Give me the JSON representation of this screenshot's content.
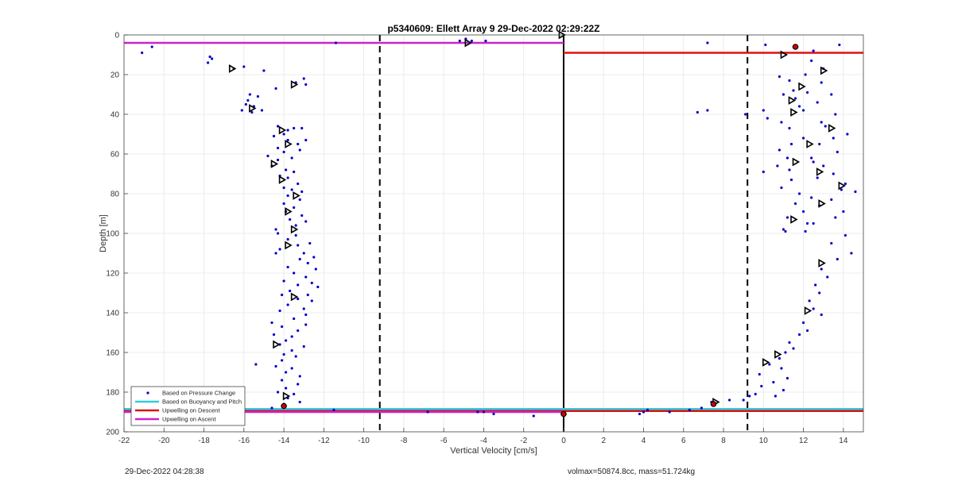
{
  "chart_data": {
    "type": "scatter",
    "title": "p5340609: Ellett Array 9 29-Dec-2022 02:29:22Z",
    "xlabel": "Vertical Velocity [cm/s]",
    "ylabel": "Depth [m]",
    "xlim": [
      -22,
      15
    ],
    "ylim": [
      0,
      200
    ],
    "y_reversed": true,
    "xticks": [
      -22,
      -20,
      -18,
      -16,
      -14,
      -12,
      -10,
      -8,
      -6,
      -4,
      -2,
      0,
      2,
      4,
      6,
      8,
      10,
      12,
      14
    ],
    "yticks": [
      0,
      20,
      40,
      60,
      80,
      100,
      120,
      140,
      160,
      180,
      200
    ],
    "grid": true,
    "legend_position": "bottom-left",
    "series": [
      {
        "name": "Based on Pressure Change",
        "style": "dots",
        "color": "#0000cc",
        "points": [
          [
            -21.1,
            9
          ],
          [
            -20.6,
            6
          ],
          [
            -17.6,
            12
          ],
          [
            -17.7,
            11
          ],
          [
            -17.8,
            14
          ],
          [
            -16.5,
            17
          ],
          [
            -16.0,
            16
          ],
          [
            -15.0,
            18
          ],
          [
            -13.0,
            22
          ],
          [
            -12.9,
            25
          ],
          [
            -13.4,
            24
          ],
          [
            -14.4,
            27
          ],
          [
            -15.7,
            30
          ],
          [
            -15.3,
            31
          ],
          [
            -15.8,
            33
          ],
          [
            -15.9,
            35
          ],
          [
            -15.5,
            36
          ],
          [
            -16.1,
            38
          ],
          [
            -15.1,
            38
          ],
          [
            -15.6,
            39
          ],
          [
            -14.3,
            46
          ],
          [
            -13.8,
            48
          ],
          [
            -13.5,
            47
          ],
          [
            -13.1,
            47
          ],
          [
            -14.0,
            50
          ],
          [
            -14.5,
            51
          ],
          [
            -13.8,
            53
          ],
          [
            -12.9,
            53
          ],
          [
            -13.3,
            55
          ],
          [
            -14.3,
            57
          ],
          [
            -13.2,
            58
          ],
          [
            -14.0,
            59
          ],
          [
            -14.8,
            61
          ],
          [
            -13.6,
            62
          ],
          [
            -14.3,
            63
          ],
          [
            -14.6,
            66
          ],
          [
            -13.9,
            68
          ],
          [
            -13.5,
            69
          ],
          [
            -14.2,
            71
          ],
          [
            -13.8,
            72
          ],
          [
            -13.3,
            75
          ],
          [
            -14.0,
            77
          ],
          [
            -13.6,
            78
          ],
          [
            -13.1,
            79
          ],
          [
            -13.8,
            81
          ],
          [
            -13.2,
            83
          ],
          [
            -14.0,
            85
          ],
          [
            -13.5,
            87
          ],
          [
            -13.9,
            89
          ],
          [
            -13.1,
            91
          ],
          [
            -13.7,
            93
          ],
          [
            -12.9,
            94
          ],
          [
            -13.4,
            96
          ],
          [
            -14.4,
            98
          ],
          [
            -14.3,
            100
          ],
          [
            -13.4,
            101
          ],
          [
            -13.8,
            103
          ],
          [
            -12.7,
            105
          ],
          [
            -13.3,
            106
          ],
          [
            -14.2,
            108
          ],
          [
            -14.4,
            110
          ],
          [
            -13.0,
            110
          ],
          [
            -12.5,
            112
          ],
          [
            -13.2,
            113
          ],
          [
            -12.8,
            115
          ],
          [
            -13.8,
            117
          ],
          [
            -12.4,
            118
          ],
          [
            -13.5,
            120
          ],
          [
            -12.9,
            122
          ],
          [
            -14.0,
            124
          ],
          [
            -12.6,
            125
          ],
          [
            -13.3,
            126
          ],
          [
            -12.3,
            127
          ],
          [
            -13.7,
            129
          ],
          [
            -14.1,
            131
          ],
          [
            -12.8,
            131
          ],
          [
            -13.3,
            133
          ],
          [
            -12.6,
            134
          ],
          [
            -13.8,
            136
          ],
          [
            -13.0,
            138
          ],
          [
            -14.2,
            139
          ],
          [
            -12.9,
            141
          ],
          [
            -13.5,
            143
          ],
          [
            -14.6,
            145
          ],
          [
            -12.9,
            146
          ],
          [
            -14.1,
            147
          ],
          [
            -13.3,
            149
          ],
          [
            -14.5,
            151
          ],
          [
            -13.6,
            152
          ],
          [
            -13.9,
            154
          ],
          [
            -14.2,
            156
          ],
          [
            -13.0,
            157
          ],
          [
            -13.6,
            159
          ],
          [
            -14.0,
            161
          ],
          [
            -13.4,
            162
          ],
          [
            -14.1,
            164
          ],
          [
            -15.4,
            166
          ],
          [
            -14.4,
            167
          ],
          [
            -13.6,
            168
          ],
          [
            -13.9,
            170
          ],
          [
            -13.2,
            172
          ],
          [
            -14.1,
            174
          ],
          [
            -13.3,
            176
          ],
          [
            -13.9,
            178
          ],
          [
            -14.3,
            180
          ],
          [
            -13.5,
            181
          ],
          [
            -13.8,
            183
          ],
          [
            -13.2,
            185
          ],
          [
            -14.0,
            186
          ],
          [
            -14.6,
            188
          ],
          [
            -11.5,
            189
          ],
          [
            -11.4,
            4
          ],
          [
            -5.2,
            3
          ],
          [
            -4.9,
            2
          ],
          [
            -4.6,
            3
          ],
          [
            -3.9,
            3
          ],
          [
            -6.8,
            190
          ],
          [
            -4.3,
            190
          ],
          [
            -4.0,
            190
          ],
          [
            -3.5,
            191
          ],
          [
            -1.5,
            192
          ],
          [
            3.8,
            191
          ],
          [
            4.0,
            190
          ],
          [
            4.2,
            189
          ],
          [
            5.3,
            190
          ],
          [
            6.3,
            189
          ],
          [
            6.9,
            188
          ],
          [
            7.2,
            4
          ],
          [
            7.4,
            185
          ],
          [
            8.3,
            184
          ],
          [
            9.0,
            184
          ],
          [
            9.3,
            182
          ],
          [
            6.7,
            39
          ],
          [
            7.2,
            38
          ],
          [
            9.1,
            40
          ],
          [
            10.1,
            5
          ],
          [
            10.0,
            38
          ],
          [
            10.2,
            42
          ],
          [
            10.8,
            21
          ],
          [
            11.3,
            23
          ],
          [
            11.5,
            28
          ],
          [
            11.0,
            30
          ],
          [
            11.6,
            32
          ],
          [
            11.8,
            36
          ],
          [
            10.9,
            44
          ],
          [
            11.3,
            47
          ],
          [
            12.0,
            52
          ],
          [
            11.4,
            55
          ],
          [
            10.8,
            58
          ],
          [
            11.2,
            62
          ],
          [
            12.5,
            64
          ],
          [
            10.7,
            66
          ],
          [
            11.3,
            68
          ],
          [
            10.0,
            69
          ],
          [
            11.4,
            73
          ],
          [
            10.9,
            77
          ],
          [
            11.8,
            80
          ],
          [
            12.4,
            82
          ],
          [
            11.6,
            85
          ],
          [
            12.0,
            89
          ],
          [
            11.2,
            92
          ],
          [
            11.0,
            98
          ],
          [
            11.1,
            99
          ],
          [
            12.5,
            95
          ],
          [
            13.8,
            5
          ],
          [
            12.5,
            8
          ],
          [
            12.4,
            13
          ],
          [
            13.0,
            17
          ],
          [
            12.1,
            20
          ],
          [
            12.9,
            24
          ],
          [
            12.2,
            29
          ],
          [
            13.4,
            30
          ],
          [
            12.7,
            34
          ],
          [
            12.0,
            38
          ],
          [
            13.6,
            40
          ],
          [
            12.9,
            44
          ],
          [
            13.1,
            46
          ],
          [
            14.2,
            50
          ],
          [
            13.5,
            52
          ],
          [
            12.8,
            55
          ],
          [
            13.7,
            59
          ],
          [
            12.4,
            62
          ],
          [
            13.0,
            66
          ],
          [
            13.5,
            70
          ],
          [
            12.7,
            72
          ],
          [
            14.1,
            75
          ],
          [
            13.9,
            78
          ],
          [
            14.6,
            79
          ],
          [
            13.4,
            83
          ],
          [
            12.8,
            86
          ],
          [
            14.0,
            89
          ],
          [
            13.6,
            92
          ],
          [
            12.2,
            95
          ],
          [
            12.1,
            99
          ],
          [
            14.1,
            101
          ],
          [
            13.4,
            105
          ],
          [
            14.4,
            110
          ],
          [
            13.7,
            113
          ],
          [
            12.9,
            118
          ],
          [
            13.2,
            122
          ],
          [
            12.6,
            126
          ],
          [
            12.8,
            130
          ],
          [
            12.3,
            134
          ],
          [
            12.5,
            138
          ],
          [
            12.9,
            141
          ],
          [
            12.0,
            145
          ],
          [
            12.2,
            149
          ],
          [
            11.8,
            151
          ],
          [
            11.3,
            155
          ],
          [
            11.5,
            158
          ],
          [
            11.1,
            160
          ],
          [
            10.8,
            163
          ],
          [
            10.3,
            166
          ],
          [
            10.9,
            168
          ],
          [
            9.8,
            171
          ],
          [
            11.2,
            173
          ],
          [
            10.5,
            175
          ],
          [
            9.9,
            177
          ],
          [
            11.0,
            179
          ],
          [
            9.6,
            181
          ],
          [
            10.6,
            182
          ]
        ]
      },
      {
        "name": "Based on Buoyancy and Pitch",
        "style": "line",
        "color": "#33ccdd",
        "segments": [
          [
            [
              -22,
              188.5
            ],
            [
              15,
              188.5
            ]
          ]
        ]
      },
      {
        "name": "Upwelling on Descent",
        "style": "line",
        "color": "#dd1111",
        "segments": [
          [
            [
              0,
              9
            ],
            [
              15,
              9
            ]
          ],
          [
            [
              -22,
              189.5
            ],
            [
              15,
              189.5
            ]
          ]
        ]
      },
      {
        "name": "Upwelling on Ascent",
        "style": "line",
        "color": "#cc22cc",
        "segments": [
          [
            [
              -22,
              4
            ],
            [
              0,
              4
            ]
          ],
          [
            [
              -22,
              190
            ],
            [
              0,
              190
            ]
          ]
        ]
      },
      {
        "style": "triangles",
        "color": "#000000",
        "points": [
          [
            -16.6,
            17
          ],
          [
            -15.6,
            37
          ],
          [
            -13.5,
            25
          ],
          [
            -14.1,
            48
          ],
          [
            -13.8,
            55
          ],
          [
            -14.5,
            65
          ],
          [
            -14.1,
            73
          ],
          [
            -13.4,
            81
          ],
          [
            -13.8,
            89
          ],
          [
            -13.5,
            98
          ],
          [
            -13.8,
            106
          ],
          [
            -13.5,
            132
          ],
          [
            -14.4,
            156
          ],
          [
            -13.9,
            182
          ],
          [
            -4.8,
            4
          ],
          [
            -0.1,
            0
          ],
          [
            11.0,
            10
          ],
          [
            11.9,
            26
          ],
          [
            13.0,
            18
          ],
          [
            11.4,
            33
          ],
          [
            11.5,
            39
          ],
          [
            13.4,
            47
          ],
          [
            12.3,
            55
          ],
          [
            11.6,
            64
          ],
          [
            12.8,
            69
          ],
          [
            13.9,
            76
          ],
          [
            12.9,
            85
          ],
          [
            11.5,
            93
          ],
          [
            12.2,
            139
          ],
          [
            12.9,
            115
          ],
          [
            10.7,
            161
          ],
          [
            10.1,
            165
          ],
          [
            7.6,
            185
          ]
        ]
      },
      {
        "style": "red-circles",
        "color": "#cc0000",
        "points": [
          [
            -14.0,
            187
          ],
          [
            0.0,
            191
          ],
          [
            7.5,
            186
          ],
          [
            11.6,
            6
          ]
        ]
      }
    ],
    "reference_lines": [
      {
        "orientation": "vertical",
        "x": 0,
        "style": "solid",
        "color": "#000000"
      },
      {
        "orientation": "vertical",
        "x": -9.2,
        "style": "dashed",
        "color": "#000000"
      },
      {
        "orientation": "vertical",
        "x": 9.2,
        "style": "dashed",
        "color": "#000000"
      }
    ]
  },
  "footer": {
    "timestamp": "29-Dec-2022 04:28:38",
    "summary": "volmax=50874.8cc, mass=51.724kg"
  }
}
